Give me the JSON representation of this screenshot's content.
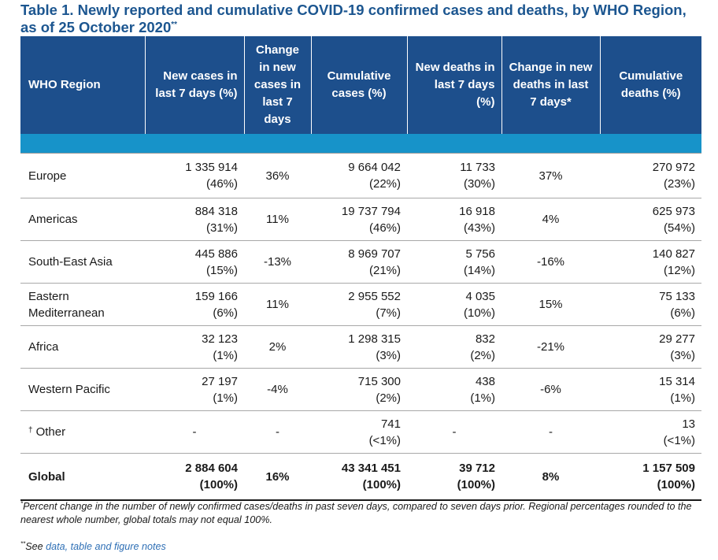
{
  "title": {
    "text": "Table 1. Newly reported and cumulative COVID-19 confirmed cases and deaths, by WHO Region, as of 25 October 2020",
    "marker": "**"
  },
  "table": {
    "headers": [
      "WHO Region",
      "New cases in last 7 days (%)",
      "Change in new cases in last 7 days",
      "Cumulative cases (%)",
      "New deaths in last 7 days (%)",
      "Change in new deaths in last 7 days*",
      "Cumulative deaths (%)"
    ],
    "rows": [
      {
        "region": "Europe",
        "new_cases": "1 335 914",
        "new_cases_pct": "(46%)",
        "change_cases": "36%",
        "cum_cases": "9 664 042",
        "cum_cases_pct": "(22%)",
        "new_deaths": "11 733",
        "new_deaths_pct": "(30%)",
        "change_deaths": "37%",
        "cum_deaths": "270 972",
        "cum_deaths_pct": "(23%)"
      },
      {
        "region": "Americas",
        "new_cases": "884 318",
        "new_cases_pct": "(31%)",
        "change_cases": "11%",
        "cum_cases": "19 737 794",
        "cum_cases_pct": "(46%)",
        "new_deaths": "16 918",
        "new_deaths_pct": "(43%)",
        "change_deaths": "4%",
        "cum_deaths": "625 973",
        "cum_deaths_pct": "(54%)"
      },
      {
        "region": "South-East Asia",
        "new_cases": "445 886",
        "new_cases_pct": "(15%)",
        "change_cases": "-13%",
        "cum_cases": "8 969 707",
        "cum_cases_pct": "(21%)",
        "new_deaths": "5 756",
        "new_deaths_pct": "(14%)",
        "change_deaths": "-16%",
        "cum_deaths": "140 827",
        "cum_deaths_pct": "(12%)"
      },
      {
        "region": "Eastern Mediterranean",
        "new_cases": "159 166",
        "new_cases_pct": "(6%)",
        "change_cases": "11%",
        "cum_cases": "2 955 552",
        "cum_cases_pct": "(7%)",
        "new_deaths": "4 035",
        "new_deaths_pct": "(10%)",
        "change_deaths": "15%",
        "cum_deaths": "75 133",
        "cum_deaths_pct": "(6%)"
      },
      {
        "region": "Africa",
        "new_cases": "32 123",
        "new_cases_pct": "(1%)",
        "change_cases": "2%",
        "cum_cases": "1 298 315",
        "cum_cases_pct": "(3%)",
        "new_deaths": "832",
        "new_deaths_pct": "(2%)",
        "change_deaths": "-21%",
        "cum_deaths": "29 277",
        "cum_deaths_pct": "(3%)"
      },
      {
        "region": "Western Pacific",
        "new_cases": "27 197",
        "new_cases_pct": "(1%)",
        "change_cases": "-4%",
        "cum_cases": "715 300",
        "cum_cases_pct": "(2%)",
        "new_deaths": "438",
        "new_deaths_pct": "(1%)",
        "change_deaths": "-6%",
        "cum_deaths": "15 314",
        "cum_deaths_pct": "(1%)"
      }
    ],
    "other": {
      "marker": "†",
      "region": "Other",
      "new_cases": "-",
      "change_cases": "-",
      "cum_cases": "741",
      "cum_cases_pct": "(<1%)",
      "new_deaths": "-",
      "change_deaths": "-",
      "cum_deaths": "13",
      "cum_deaths_pct": "(<1%)"
    },
    "global": {
      "region": "Global",
      "new_cases": "2 884 604",
      "new_cases_pct": "(100%)",
      "change_cases": "16%",
      "cum_cases": "43 341 451",
      "cum_cases_pct": "(100%)",
      "new_deaths": "39 712",
      "new_deaths_pct": "(100%)",
      "change_deaths": "8%",
      "cum_deaths": "1 157 509",
      "cum_deaths_pct": "(100%)"
    }
  },
  "footnotes": {
    "star_marker": "*",
    "star_text": "Percent change in the number of newly confirmed cases/deaths in past seven days, compared to seven days prior. Regional percentages rounded to the nearest whole number, global totals may not equal 100%.",
    "see_marker": "**",
    "see_prefix": "See ",
    "see_link": "data, table and figure notes"
  },
  "colors": {
    "title": "#1c5690",
    "header_bg": "#1d4f8c",
    "band": "#1793c9",
    "link": "#2e6fb5"
  }
}
